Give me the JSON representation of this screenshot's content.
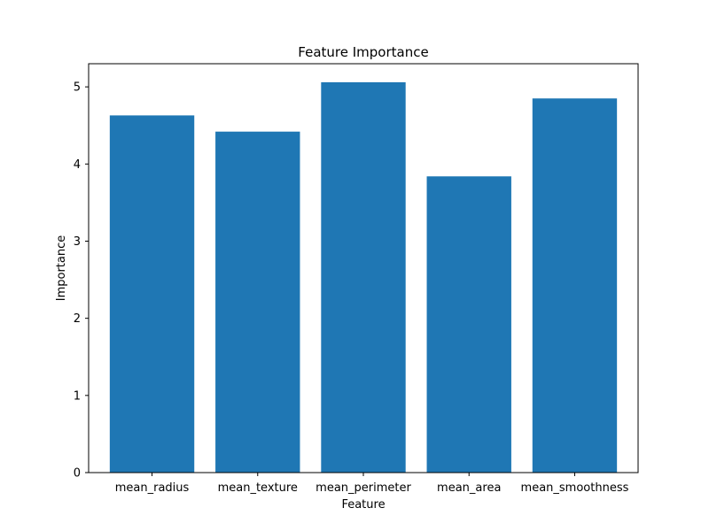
{
  "chart_data": {
    "type": "bar",
    "title": "Feature Importance",
    "xlabel": "Feature",
    "ylabel": "Importance",
    "categories": [
      "mean_radius",
      "mean_texture",
      "mean_perimeter",
      "mean_area",
      "mean_smoothness"
    ],
    "values": [
      4.63,
      4.42,
      5.06,
      3.84,
      4.85
    ],
    "ylim": [
      0,
      5.3
    ],
    "yticks": [
      0,
      1,
      2,
      3,
      4,
      5
    ],
    "bar_color": "#1f77b4",
    "grid": false,
    "legend": "none"
  }
}
